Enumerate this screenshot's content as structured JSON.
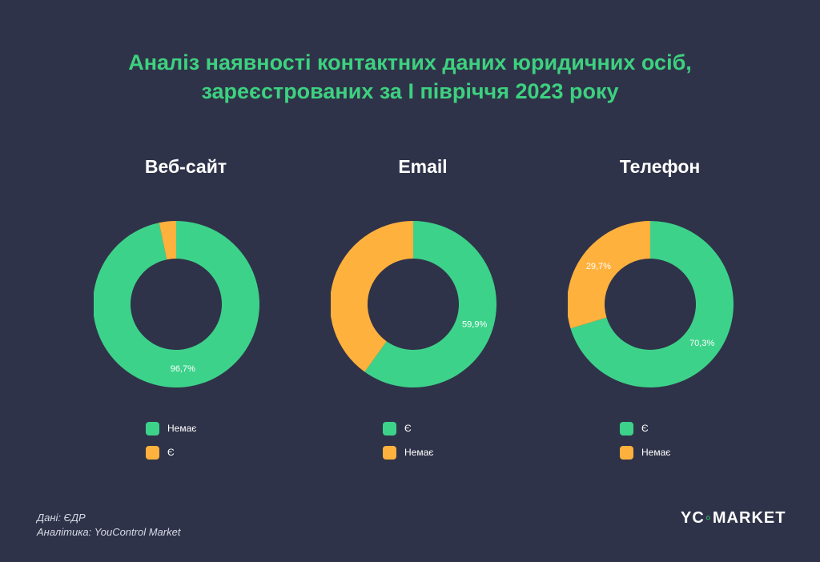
{
  "header": {
    "title_line1": "Аналіз наявності контактних даних юридичних осіб,",
    "title_line2": "зареєстрованих за І півріччя 2023 року"
  },
  "colors": {
    "green": "#3dd17f",
    "teal": "#38d6a0",
    "orange": "#ffb13d",
    "background": "#2f3349"
  },
  "chart_data": [
    {
      "type": "pie",
      "title": "Веб-сайт",
      "slices": [
        {
          "label": "Немає",
          "value": 96.7,
          "color": "#3dd28a",
          "display": "96,7%"
        },
        {
          "label": "Є",
          "value": 3.3,
          "color": "#ffb13d",
          "display": ""
        }
      ]
    },
    {
      "type": "pie",
      "title": "Email",
      "slices": [
        {
          "label": "Є",
          "value": 59.9,
          "color": "#3dd28a",
          "display": "59,9%"
        },
        {
          "label": "Немає",
          "value": 40.1,
          "color": "#ffb13d",
          "display": ""
        }
      ]
    },
    {
      "type": "pie",
      "title": "Телефон",
      "slices": [
        {
          "label": "Є",
          "value": 70.3,
          "color": "#3dd28a",
          "display": "70,3%"
        },
        {
          "label": "Немає",
          "value": 29.7,
          "color": "#ffb13d",
          "display": "29,7%"
        }
      ]
    }
  ],
  "footer": {
    "source_line1": "Дані: ЄДР",
    "source_line2": "Аналітика: YouControl Market",
    "logo_left": "YC",
    "logo_mark": "◦",
    "logo_right": "MARKET"
  }
}
